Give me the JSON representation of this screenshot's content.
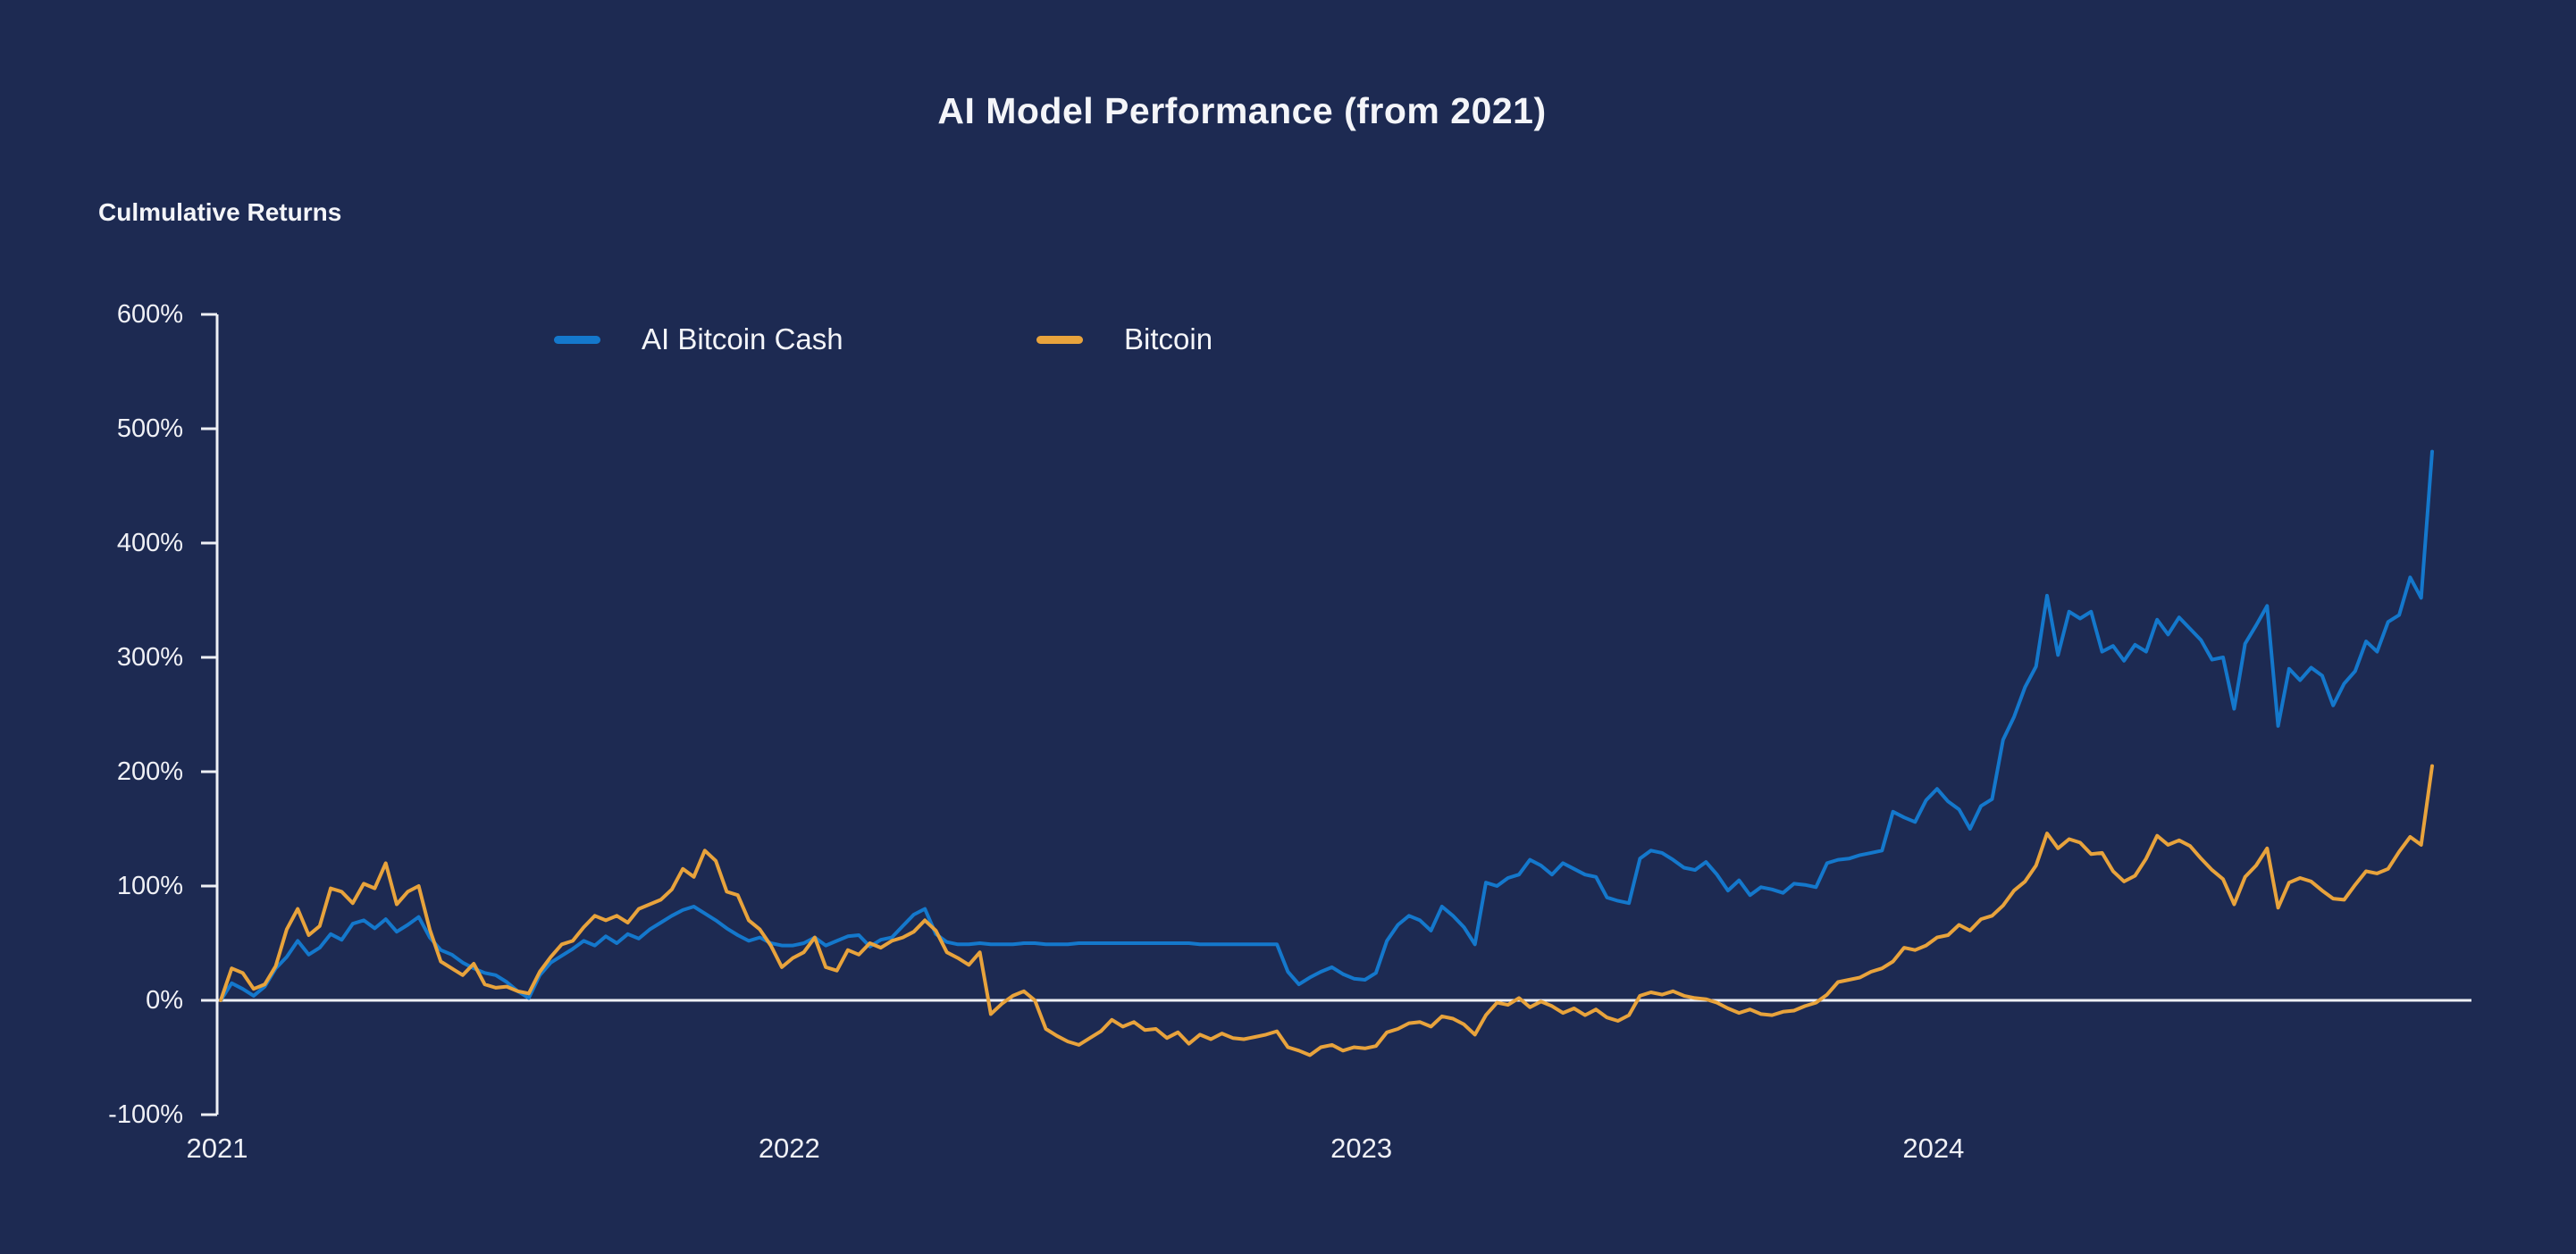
{
  "page": {
    "background_color": "#1d2a52",
    "text_color": "#f4f5f9"
  },
  "header": {
    "title": "AI Model Performance (from 2021)",
    "axis_title": "Culmulative Returns"
  },
  "legend": {
    "items": [
      {
        "label": "AI Bitcoin Cash",
        "color": "#1478cc"
      },
      {
        "label": "Bitcoin",
        "color": "#e8a33c"
      }
    ]
  },
  "chart_data": {
    "type": "line",
    "title": "AI Model Performance (from 2021)",
    "ylabel": "Culmulative Returns",
    "xlabel": "",
    "x_start": "2021-01",
    "x_end": "2024-11",
    "x_resolution": "weekly",
    "ylim": [
      -100,
      600
    ],
    "y_tick_values": [
      600,
      500,
      400,
      300,
      200,
      100,
      0,
      -100
    ],
    "y_tick_suffix": "%",
    "grid": "zero-line-only",
    "axis_color": "#eef0f5",
    "legend_position": "top-inside",
    "year_ticks": [
      {
        "label": "2021",
        "week": 0
      },
      {
        "label": "2022",
        "week": 52
      },
      {
        "label": "2023",
        "week": 104
      },
      {
        "label": "2024",
        "week": 156
      }
    ],
    "series": [
      {
        "name": "AI Bitcoin Cash",
        "color": "#1478cc",
        "values": [
          0,
          15,
          10,
          4,
          12,
          28,
          38,
          52,
          40,
          46,
          58,
          53,
          67,
          70,
          63,
          71,
          60,
          66,
          73,
          55,
          44,
          40,
          33,
          28,
          24,
          22,
          16,
          8,
          2,
          22,
          33,
          39,
          45,
          52,
          48,
          56,
          50,
          58,
          54,
          62,
          68,
          74,
          79,
          82,
          76,
          70,
          63,
          57,
          52,
          55,
          50,
          48,
          48,
          50,
          55,
          48,
          52,
          56,
          57,
          47,
          53,
          55,
          65,
          75,
          80,
          58,
          51,
          49,
          49,
          50,
          49,
          49,
          49,
          50,
          50,
          49,
          49,
          49,
          50,
          50,
          50,
          50,
          50,
          50,
          50,
          50,
          50,
          50,
          50,
          49,
          49,
          49,
          49,
          49,
          49,
          49,
          49,
          25,
          14,
          20,
          25,
          29,
          23,
          19,
          18,
          24,
          52,
          66,
          74,
          70,
          61,
          82,
          74,
          64,
          49,
          103,
          100,
          107,
          110,
          123,
          118,
          110,
          120,
          115,
          110,
          108,
          90,
          87,
          85,
          124,
          131,
          129,
          123,
          116,
          114,
          121,
          110,
          96,
          105,
          92,
          99,
          97,
          94,
          102,
          101,
          99,
          120,
          123,
          124,
          127,
          129,
          131,
          165,
          160,
          156,
          175,
          185,
          174,
          167,
          150,
          170,
          176,
          228,
          248,
          274,
          292,
          354,
          302,
          340,
          334,
          340,
          305,
          310,
          297,
          311,
          305,
          333,
          320,
          335,
          325,
          315,
          298,
          300,
          255,
          312,
          328,
          345,
          240,
          290,
          280,
          291,
          284,
          258,
          277,
          288,
          314,
          305,
          331,
          337,
          370,
          352,
          480
        ]
      },
      {
        "name": "Bitcoin",
        "color": "#e8a33c",
        "values": [
          0,
          28,
          24,
          10,
          14,
          30,
          62,
          80,
          57,
          65,
          98,
          95,
          85,
          102,
          98,
          120,
          84,
          95,
          100,
          62,
          34,
          28,
          22,
          32,
          14,
          11,
          12,
          8,
          6,
          25,
          38,
          49,
          52,
          64,
          74,
          70,
          74,
          68,
          80,
          84,
          88,
          97,
          115,
          108,
          131,
          122,
          95,
          92,
          70,
          62,
          48,
          29,
          37,
          42,
          55,
          29,
          26,
          44,
          40,
          50,
          46,
          52,
          55,
          60,
          70,
          61,
          42,
          37,
          31,
          42,
          -12,
          -3,
          4,
          8,
          0,
          -25,
          -31,
          -36,
          -39,
          -33,
          -27,
          -17,
          -23,
          -19,
          -26,
          -25,
          -33,
          -28,
          -38,
          -30,
          -34,
          -29,
          -33,
          -34,
          -32,
          -30,
          -27,
          -41,
          -44,
          -48,
          -41,
          -39,
          -44,
          -41,
          -42,
          -40,
          -28,
          -25,
          -20,
          -19,
          -23,
          -14,
          -16,
          -21,
          -30,
          -13,
          -2,
          -4,
          2,
          -6,
          -1,
          -5,
          -11,
          -7,
          -13,
          -8,
          -15,
          -18,
          -13,
          4,
          7,
          5,
          8,
          4,
          2,
          1,
          -2,
          -7,
          -11,
          -8,
          -12,
          -13,
          -10,
          -9,
          -5,
          -2,
          5,
          16,
          18,
          20,
          25,
          28,
          34,
          46,
          44,
          48,
          55,
          57,
          66,
          61,
          71,
          74,
          83,
          96,
          104,
          118,
          146,
          133,
          141,
          138,
          128,
          129,
          113,
          104,
          109,
          124,
          144,
          136,
          140,
          135,
          124,
          114,
          106,
          84,
          108,
          118,
          133,
          81,
          103,
          107,
          104,
          96,
          89,
          88,
          101,
          113,
          111,
          115,
          130,
          143,
          136,
          205
        ]
      }
    ]
  }
}
